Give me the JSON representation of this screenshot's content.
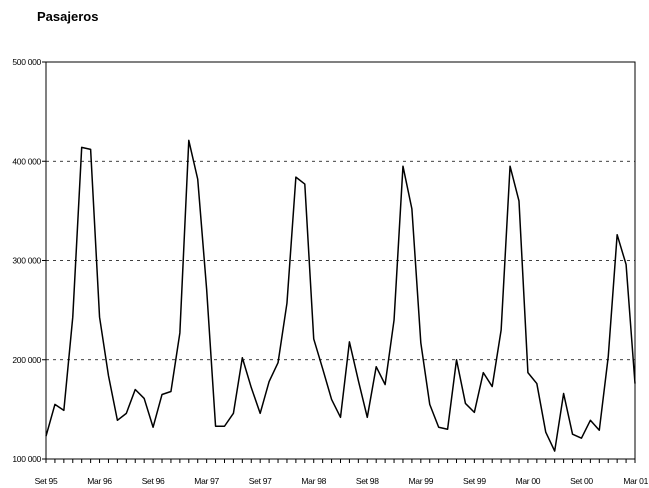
{
  "chart_data": {
    "type": "line",
    "title": "Pasajeros",
    "xlabel": "",
    "ylabel": "",
    "ylim": [
      100000,
      500000
    ],
    "y_ticks": [
      {
        "value": 100000,
        "label": "100 000"
      },
      {
        "value": 200000,
        "label": "200 000"
      },
      {
        "value": 300000,
        "label": "300 000"
      },
      {
        "value": 400000,
        "label": "400 000"
      },
      {
        "value": 500000,
        "label": "500 000"
      }
    ],
    "x_tick_labels": [
      {
        "index": 0,
        "label": "Set 95"
      },
      {
        "index": 6,
        "label": "Mar 96"
      },
      {
        "index": 12,
        "label": "Set 96"
      },
      {
        "index": 18,
        "label": "Mar 97"
      },
      {
        "index": 24,
        "label": "Set 97"
      },
      {
        "index": 30,
        "label": "Mar 98"
      },
      {
        "index": 36,
        "label": "Set 98"
      },
      {
        "index": 42,
        "label": "Mar 99"
      },
      {
        "index": 48,
        "label": "Set 99"
      },
      {
        "index": 54,
        "label": "Mar 00"
      },
      {
        "index": 60,
        "label": "Set 00"
      },
      {
        "index": 66,
        "label": "Mar 01"
      }
    ],
    "grid": "horizontal dashed",
    "color": "#000000",
    "series": [
      {
        "values": [
          123000,
          155000,
          149000,
          243000,
          414000,
          412000,
          243000,
          184000,
          139000,
          146000,
          170000,
          161000,
          132000,
          165000,
          168000,
          227000,
          421000,
          382000,
          271000,
          133000,
          133000,
          146000,
          202000,
          172000,
          146000,
          178000,
          197000,
          257000,
          384000,
          377000,
          221000,
          191000,
          160000,
          142000,
          218000,
          179000,
          142000,
          193000,
          175000,
          240000,
          395000,
          352000,
          217000,
          155000,
          132000,
          130000,
          200000,
          156000,
          147000,
          187000,
          173000,
          230000,
          395000,
          360000,
          187000,
          176000,
          127000,
          108000,
          166000,
          125000,
          121000,
          139000,
          129000,
          203000,
          326000,
          296000,
          176000
        ]
      }
    ]
  }
}
